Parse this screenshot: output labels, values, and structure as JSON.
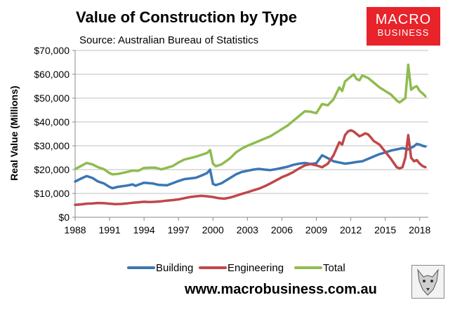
{
  "header": {
    "title": "Value of Construction by Type",
    "source": "Source: Australian Bureau of Statistics"
  },
  "logo": {
    "line1": "MACRO",
    "line2": "BUSINESS"
  },
  "footer": {
    "url": "www.macrobusiness.com.au"
  },
  "colors": {
    "building": "#3b76b4",
    "engineering": "#c0474a",
    "total": "#8fbc4f"
  },
  "chart_data": {
    "type": "line",
    "title": "Value of Construction by Type",
    "xlabel": "",
    "ylabel": "Real Value (Millions)",
    "xlim": [
      1988,
      2018.75
    ],
    "ylim": [
      0,
      70000
    ],
    "x_ticks": [
      "1988",
      "1991",
      "1994",
      "1997",
      "2000",
      "2003",
      "2006",
      "2009",
      "2012",
      "2015",
      "2018"
    ],
    "y_ticks": [
      "$0",
      "$10,000",
      "$20,000",
      "$30,000",
      "$40,000",
      "$50,000",
      "$60,000",
      "$70,000"
    ],
    "legend_position": "bottom",
    "series": [
      {
        "name": "Building",
        "color_key": "building",
        "points": [
          [
            1988.0,
            15000
          ],
          [
            1988.5,
            16200
          ],
          [
            1989.0,
            17300
          ],
          [
            1989.5,
            16500
          ],
          [
            1990.0,
            15000
          ],
          [
            1990.5,
            14200
          ],
          [
            1991.0,
            12700
          ],
          [
            1991.25,
            12200
          ],
          [
            1991.75,
            12800
          ],
          [
            1992.5,
            13300
          ],
          [
            1993.0,
            13800
          ],
          [
            1993.25,
            13200
          ],
          [
            1994.0,
            14500
          ],
          [
            1994.75,
            14200
          ],
          [
            1995.25,
            13600
          ],
          [
            1996.0,
            13400
          ],
          [
            1996.5,
            14300
          ],
          [
            1997.0,
            15200
          ],
          [
            1997.5,
            16000
          ],
          [
            1998.0,
            16300
          ],
          [
            1998.5,
            16600
          ],
          [
            1999.0,
            17500
          ],
          [
            1999.5,
            18600
          ],
          [
            1999.75,
            20000
          ],
          [
            2000.0,
            14000
          ],
          [
            2000.25,
            13500
          ],
          [
            2000.75,
            14300
          ],
          [
            2001.5,
            16500
          ],
          [
            2002.0,
            18000
          ],
          [
            2002.5,
            19000
          ],
          [
            2003.0,
            19500
          ],
          [
            2003.5,
            20000
          ],
          [
            2004.0,
            20300
          ],
          [
            2004.5,
            20000
          ],
          [
            2005.0,
            19800
          ],
          [
            2005.5,
            20200
          ],
          [
            2006.0,
            20700
          ],
          [
            2006.5,
            21200
          ],
          [
            2007.0,
            22000
          ],
          [
            2007.5,
            22500
          ],
          [
            2008.0,
            22800
          ],
          [
            2008.5,
            22400
          ],
          [
            2009.0,
            22700
          ],
          [
            2009.5,
            26000
          ],
          [
            2010.0,
            24800
          ],
          [
            2010.5,
            23500
          ],
          [
            2011.0,
            23000
          ],
          [
            2011.5,
            22500
          ],
          [
            2012.0,
            22800
          ],
          [
            2012.5,
            23200
          ],
          [
            2013.0,
            23500
          ],
          [
            2013.5,
            24500
          ],
          [
            2014.0,
            25500
          ],
          [
            2014.5,
            26500
          ],
          [
            2015.0,
            27200
          ],
          [
            2015.5,
            28000
          ],
          [
            2016.0,
            28500
          ],
          [
            2016.5,
            29000
          ],
          [
            2017.0,
            28500
          ],
          [
            2017.5,
            29800
          ],
          [
            2017.75,
            30800
          ],
          [
            2018.0,
            30500
          ],
          [
            2018.25,
            30000
          ],
          [
            2018.5,
            29700
          ]
        ]
      },
      {
        "name": "Engineering",
        "color_key": "engineering",
        "points": [
          [
            1988.0,
            5200
          ],
          [
            1988.5,
            5400
          ],
          [
            1989.0,
            5700
          ],
          [
            1989.5,
            5800
          ],
          [
            1990.0,
            6000
          ],
          [
            1990.5,
            5900
          ],
          [
            1991.0,
            5700
          ],
          [
            1991.5,
            5500
          ],
          [
            1992.0,
            5600
          ],
          [
            1992.5,
            5800
          ],
          [
            1993.0,
            6100
          ],
          [
            1993.5,
            6300
          ],
          [
            1994.0,
            6500
          ],
          [
            1994.5,
            6400
          ],
          [
            1995.0,
            6500
          ],
          [
            1995.5,
            6700
          ],
          [
            1996.0,
            7000
          ],
          [
            1996.5,
            7200
          ],
          [
            1997.0,
            7500
          ],
          [
            1997.5,
            8000
          ],
          [
            1998.0,
            8500
          ],
          [
            1998.5,
            8800
          ],
          [
            1999.0,
            9000
          ],
          [
            1999.5,
            8800
          ],
          [
            2000.0,
            8500
          ],
          [
            2000.5,
            8000
          ],
          [
            2001.0,
            7800
          ],
          [
            2001.5,
            8300
          ],
          [
            2002.0,
            9000
          ],
          [
            2002.5,
            9800
          ],
          [
            2003.0,
            10500
          ],
          [
            2003.5,
            11300
          ],
          [
            2004.0,
            12000
          ],
          [
            2004.5,
            13000
          ],
          [
            2005.0,
            14200
          ],
          [
            2005.5,
            15500
          ],
          [
            2006.0,
            16800
          ],
          [
            2006.5,
            17800
          ],
          [
            2007.0,
            19000
          ],
          [
            2007.5,
            20500
          ],
          [
            2008.0,
            21800
          ],
          [
            2008.5,
            22300
          ],
          [
            2009.0,
            21800
          ],
          [
            2009.5,
            21000
          ],
          [
            2010.0,
            22500
          ],
          [
            2010.5,
            26000
          ],
          [
            2011.0,
            31500
          ],
          [
            2011.25,
            30500
          ],
          [
            2011.5,
            34500
          ],
          [
            2011.75,
            36000
          ],
          [
            2012.0,
            36500
          ],
          [
            2012.25,
            36000
          ],
          [
            2012.5,
            35000
          ],
          [
            2012.75,
            34000
          ],
          [
            2013.0,
            34500
          ],
          [
            2013.25,
            35200
          ],
          [
            2013.5,
            34800
          ],
          [
            2013.75,
            33500
          ],
          [
            2014.0,
            32000
          ],
          [
            2014.5,
            30500
          ],
          [
            2015.0,
            27500
          ],
          [
            2015.5,
            24500
          ],
          [
            2016.0,
            21000
          ],
          [
            2016.25,
            20500
          ],
          [
            2016.5,
            21000
          ],
          [
            2016.75,
            25000
          ],
          [
            2017.0,
            34500
          ],
          [
            2017.25,
            25000
          ],
          [
            2017.5,
            23500
          ],
          [
            2017.75,
            24000
          ],
          [
            2018.0,
            22500
          ],
          [
            2018.25,
            21500
          ],
          [
            2018.5,
            21000
          ]
        ]
      },
      {
        "name": "Total",
        "color_key": "total",
        "points": [
          [
            1988.0,
            20200
          ],
          [
            1988.5,
            21500
          ],
          [
            1989.0,
            22800
          ],
          [
            1989.5,
            22200
          ],
          [
            1990.0,
            21000
          ],
          [
            1990.5,
            20200
          ],
          [
            1991.0,
            18500
          ],
          [
            1991.25,
            18000
          ],
          [
            1991.75,
            18200
          ],
          [
            1992.5,
            19000
          ],
          [
            1993.0,
            19600
          ],
          [
            1993.5,
            19500
          ],
          [
            1994.0,
            20700
          ],
          [
            1994.5,
            20800
          ],
          [
            1995.0,
            20800
          ],
          [
            1995.5,
            20100
          ],
          [
            1996.0,
            20800
          ],
          [
            1996.5,
            21500
          ],
          [
            1997.0,
            23000
          ],
          [
            1997.5,
            24200
          ],
          [
            1998.0,
            24800
          ],
          [
            1998.5,
            25400
          ],
          [
            1999.0,
            26200
          ],
          [
            1999.5,
            27000
          ],
          [
            1999.75,
            28200
          ],
          [
            2000.0,
            22500
          ],
          [
            2000.25,
            21400
          ],
          [
            2000.75,
            22200
          ],
          [
            2001.5,
            24800
          ],
          [
            2002.0,
            27200
          ],
          [
            2002.5,
            28800
          ],
          [
            2003.0,
            30000
          ],
          [
            2003.5,
            31000
          ],
          [
            2004.0,
            32000
          ],
          [
            2004.5,
            33000
          ],
          [
            2005.0,
            34000
          ],
          [
            2005.5,
            35500
          ],
          [
            2006.0,
            37000
          ],
          [
            2006.5,
            38500
          ],
          [
            2007.0,
            40500
          ],
          [
            2007.5,
            42500
          ],
          [
            2008.0,
            44500
          ],
          [
            2008.5,
            44300
          ],
          [
            2009.0,
            43700
          ],
          [
            2009.5,
            47500
          ],
          [
            2010.0,
            47000
          ],
          [
            2010.5,
            49500
          ],
          [
            2011.0,
            54500
          ],
          [
            2011.25,
            53000
          ],
          [
            2011.5,
            57000
          ],
          [
            2012.0,
            59000
          ],
          [
            2012.25,
            60000
          ],
          [
            2012.5,
            58000
          ],
          [
            2012.75,
            57500
          ],
          [
            2013.0,
            59500
          ],
          [
            2013.5,
            58500
          ],
          [
            2014.0,
            56500
          ],
          [
            2014.5,
            54500
          ],
          [
            2015.0,
            53000
          ],
          [
            2015.5,
            51500
          ],
          [
            2016.0,
            49000
          ],
          [
            2016.25,
            48200
          ],
          [
            2016.75,
            50000
          ],
          [
            2017.0,
            64000
          ],
          [
            2017.25,
            53500
          ],
          [
            2017.5,
            54500
          ],
          [
            2017.75,
            55000
          ],
          [
            2018.0,
            53000
          ],
          [
            2018.25,
            52000
          ],
          [
            2018.5,
            50800
          ]
        ]
      }
    ]
  }
}
